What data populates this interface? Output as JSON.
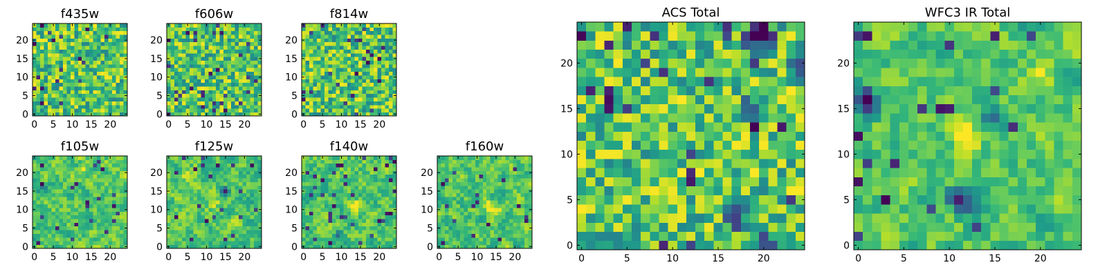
{
  "figure": {
    "background": "#ffffff",
    "colormap": "viridis",
    "colormap_stops": [
      "#440154",
      "#482878",
      "#3e4989",
      "#31688e",
      "#26828e",
      "#1f9e89",
      "#35b779",
      "#6ece58",
      "#b5de2b",
      "#fde725"
    ]
  },
  "chart_data": [
    {
      "type": "heatmap",
      "name": "f435w",
      "title": "f435w",
      "grid": [
        25,
        25
      ],
      "xlim": [
        -0.5,
        24.5
      ],
      "ylim": [
        -0.5,
        24.5
      ],
      "xticks": [
        0,
        5,
        10,
        15,
        20
      ],
      "yticks": [
        0,
        5,
        10,
        15,
        20
      ],
      "texture": "fine",
      "value_range": [
        0,
        1
      ],
      "seed": 11,
      "features": []
    },
    {
      "type": "heatmap",
      "name": "f606w",
      "title": "f606w",
      "grid": [
        25,
        25
      ],
      "xlim": [
        -0.5,
        24.5
      ],
      "ylim": [
        -0.5,
        24.5
      ],
      "xticks": [
        0,
        5,
        10,
        15,
        20
      ],
      "yticks": [
        0,
        5,
        10,
        15,
        20
      ],
      "texture": "fine",
      "value_range": [
        0,
        1
      ],
      "seed": 23,
      "features": []
    },
    {
      "type": "heatmap",
      "name": "f814w",
      "title": "f814w",
      "grid": [
        25,
        25
      ],
      "xlim": [
        -0.5,
        24.5
      ],
      "ylim": [
        -0.5,
        24.5
      ],
      "xticks": [
        0,
        5,
        10,
        15,
        20
      ],
      "yticks": [
        0,
        5,
        10,
        15,
        20
      ],
      "texture": "fine",
      "value_range": [
        0,
        1
      ],
      "seed": 37,
      "features": []
    },
    {
      "type": "heatmap",
      "name": "f105w",
      "title": "f105w",
      "grid": [
        25,
        25
      ],
      "xlim": [
        -0.5,
        24.5
      ],
      "ylim": [
        -0.5,
        24.5
      ],
      "xticks": [
        0,
        5,
        10,
        15,
        20
      ],
      "yticks": [
        0,
        5,
        10,
        15,
        20
      ],
      "texture": "smooth",
      "value_range": [
        0,
        1
      ],
      "seed": 41,
      "features": [
        {
          "x": 13,
          "y": 21,
          "amp": 0.25
        },
        {
          "x": 10,
          "y": 18,
          "amp": 0.2
        },
        {
          "x": 2,
          "y": 16,
          "amp": -0.35
        }
      ]
    },
    {
      "type": "heatmap",
      "name": "f125w",
      "title": "f125w",
      "grid": [
        25,
        25
      ],
      "xlim": [
        -0.5,
        24.5
      ],
      "ylim": [
        -0.5,
        24.5
      ],
      "xticks": [
        0,
        5,
        10,
        15,
        20
      ],
      "yticks": [
        0,
        5,
        10,
        15,
        20
      ],
      "texture": "smooth",
      "value_range": [
        0,
        1
      ],
      "seed": 53,
      "features": [
        {
          "x": 15,
          "y": 15,
          "amp": -0.6
        },
        {
          "x": 12,
          "y": 12,
          "amp": 0.25
        },
        {
          "x": 5,
          "y": 19,
          "amp": 0.2
        }
      ]
    },
    {
      "type": "heatmap",
      "name": "f140w",
      "title": "f140w",
      "grid": [
        25,
        25
      ],
      "xlim": [
        -0.5,
        24.5
      ],
      "ylim": [
        -0.5,
        24.5
      ],
      "xticks": [
        0,
        5,
        10,
        15,
        20
      ],
      "yticks": [
        0,
        5,
        10,
        15,
        20
      ],
      "texture": "smooth",
      "value_range": [
        0,
        1
      ],
      "seed": 67,
      "features": [
        {
          "x": 14,
          "y": 11,
          "amp": 0.3
        },
        {
          "x": 9,
          "y": 3,
          "amp": -0.3
        }
      ]
    },
    {
      "type": "heatmap",
      "name": "f160w",
      "title": "f160w",
      "grid": [
        25,
        25
      ],
      "xlim": [
        -0.5,
        24.5
      ],
      "ylim": [
        -0.5,
        24.5
      ],
      "xticks": [
        0,
        5,
        10,
        15,
        20
      ],
      "yticks": [
        0,
        5,
        10,
        15,
        20
      ],
      "texture": "smooth",
      "value_range": [
        0,
        1
      ],
      "seed": 79,
      "features": [
        {
          "x": 13,
          "y": 11,
          "amp": 0.3
        },
        {
          "x": 15,
          "y": 10,
          "amp": 0.2
        }
      ]
    },
    {
      "type": "heatmap",
      "name": "acs-total",
      "title": "ACS Total",
      "grid": [
        25,
        25
      ],
      "xlim": [
        -0.5,
        24.5
      ],
      "ylim": [
        -0.5,
        24.5
      ],
      "xticks": [
        0,
        5,
        10,
        15,
        20
      ],
      "yticks": [
        0,
        5,
        10,
        15,
        20
      ],
      "texture": "fine",
      "value_range": [
        0,
        1
      ],
      "seed": 97,
      "features": [
        {
          "x": 19,
          "y": 23,
          "amp": -0.6
        },
        {
          "x": 20,
          "y": 23,
          "amp": -0.6
        },
        {
          "x": 24,
          "y": 20,
          "amp": -0.6
        },
        {
          "x": 19,
          "y": 15,
          "amp": -0.5
        },
        {
          "x": 17,
          "y": 3,
          "amp": -0.5
        },
        {
          "x": 20,
          "y": 0,
          "amp": -0.5
        }
      ]
    },
    {
      "type": "heatmap",
      "name": "wfc3-ir-total",
      "title": "WFC3 IR Total",
      "grid": [
        25,
        25
      ],
      "xlim": [
        -0.5,
        24.5
      ],
      "ylim": [
        -0.5,
        24.5
      ],
      "xticks": [
        0,
        5,
        10,
        15,
        20
      ],
      "yticks": [
        0,
        5,
        10,
        15,
        20
      ],
      "texture": "smooth",
      "value_range": [
        0,
        1
      ],
      "seed": 113,
      "features": [
        {
          "x": 1,
          "y": 16,
          "amp": -0.7
        },
        {
          "x": 12,
          "y": 12,
          "amp": 0.45
        },
        {
          "x": 20,
          "y": 19,
          "amp": 0.3
        },
        {
          "x": 11,
          "y": 5,
          "amp": -0.5
        },
        {
          "x": 15,
          "y": 14,
          "amp": -0.5
        },
        {
          "x": 13,
          "y": 4,
          "amp": -0.4
        }
      ]
    }
  ]
}
